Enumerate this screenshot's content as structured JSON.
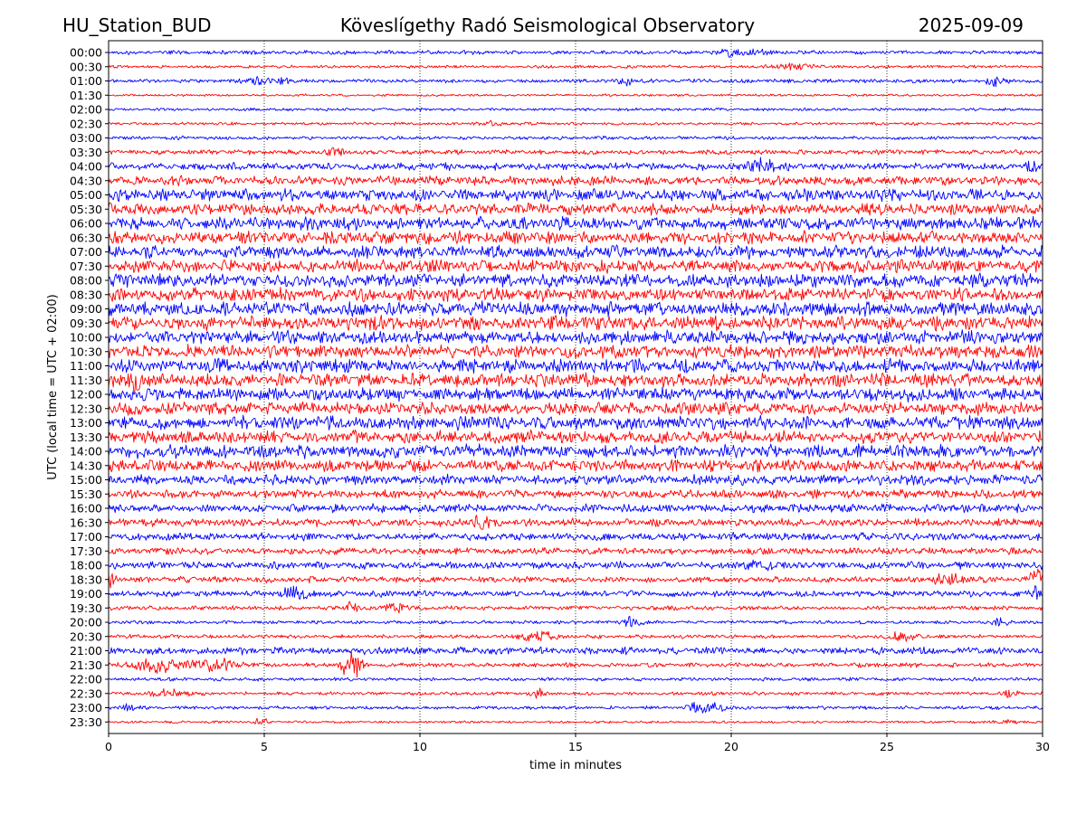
{
  "header": {
    "station": "HU_Station_BUD",
    "title": "Köveslígethy Radó Seismological Observatory",
    "date": "2025-09-09"
  },
  "chart_data": {
    "type": "line",
    "title": "Köveslígethy Radó Seismological Observatory",
    "station": "HU_Station_BUD",
    "date": "2025-09-09",
    "xlabel": "time in minutes",
    "ylabel": "UTC (local time = UTC + 02:00)",
    "xlim": [
      0,
      30
    ],
    "xticks": [
      0,
      5,
      10,
      15,
      20,
      25,
      30
    ],
    "x_gridlines": "dotted vertical at every 5 minutes",
    "colors": {
      "even_trace": "#0000ff",
      "odd_trace": "#ff0000",
      "frame": "#000000",
      "background": "#ffffff"
    },
    "rows": [
      {
        "label": "00:00",
        "amp": 0.16,
        "events": [
          {
            "t": 20.2,
            "a": 0.3,
            "w": 0.8
          }
        ]
      },
      {
        "label": "00:30",
        "amp": 0.12,
        "events": [
          {
            "t": 22.0,
            "a": 0.28,
            "w": 0.7
          }
        ]
      },
      {
        "label": "01:00",
        "amp": 0.16,
        "events": [
          {
            "t": 5.0,
            "a": 0.4,
            "w": 0.7
          },
          {
            "t": 16.7,
            "a": 0.45,
            "w": 0.25
          },
          {
            "t": 28.5,
            "a": 0.45,
            "w": 0.3
          }
        ]
      },
      {
        "label": "01:30",
        "amp": 0.1,
        "events": []
      },
      {
        "label": "02:00",
        "amp": 0.12,
        "events": []
      },
      {
        "label": "02:30",
        "amp": 0.12,
        "events": [
          {
            "t": 12.2,
            "a": 0.3,
            "w": 0.4
          }
        ]
      },
      {
        "label": "03:00",
        "amp": 0.14,
        "events": []
      },
      {
        "label": "03:30",
        "amp": 0.2,
        "events": [
          {
            "t": 7.3,
            "a": 0.45,
            "w": 0.3
          }
        ]
      },
      {
        "label": "04:00",
        "amp": 0.3,
        "events": [
          {
            "t": 21.0,
            "a": 0.65,
            "w": 0.5
          },
          {
            "t": 29.7,
            "a": 0.45,
            "w": 0.2
          }
        ]
      },
      {
        "label": "04:30",
        "amp": 0.38,
        "events": []
      },
      {
        "label": "05:00",
        "amp": 0.5,
        "events": []
      },
      {
        "label": "05:30",
        "amp": 0.48,
        "events": []
      },
      {
        "label": "06:00",
        "amp": 0.52,
        "events": []
      },
      {
        "label": "06:30",
        "amp": 0.52,
        "events": []
      },
      {
        "label": "07:00",
        "amp": 0.52,
        "events": []
      },
      {
        "label": "07:30",
        "amp": 0.52,
        "events": []
      },
      {
        "label": "08:00",
        "amp": 0.55,
        "events": []
      },
      {
        "label": "08:30",
        "amp": 0.55,
        "events": []
      },
      {
        "label": "09:00",
        "amp": 0.58,
        "events": []
      },
      {
        "label": "09:30",
        "amp": 0.58,
        "events": []
      },
      {
        "label": "10:00",
        "amp": 0.55,
        "events": []
      },
      {
        "label": "10:30",
        "amp": 0.55,
        "events": []
      },
      {
        "label": "11:00",
        "amp": 0.55,
        "events": []
      },
      {
        "label": "11:30",
        "amp": 0.55,
        "events": [
          {
            "t": 0.9,
            "a": 0.9,
            "w": 0.2
          }
        ]
      },
      {
        "label": "12:00",
        "amp": 0.55,
        "events": []
      },
      {
        "label": "12:30",
        "amp": 0.52,
        "events": []
      },
      {
        "label": "13:00",
        "amp": 0.55,
        "events": []
      },
      {
        "label": "13:30",
        "amp": 0.52,
        "events": []
      },
      {
        "label": "14:00",
        "amp": 0.55,
        "events": []
      },
      {
        "label": "14:30",
        "amp": 0.5,
        "events": []
      },
      {
        "label": "15:00",
        "amp": 0.42,
        "events": []
      },
      {
        "label": "15:30",
        "amp": 0.35,
        "events": []
      },
      {
        "label": "16:00",
        "amp": 0.35,
        "events": []
      },
      {
        "label": "16:30",
        "amp": 0.32,
        "events": [
          {
            "t": 11.9,
            "a": 0.55,
            "w": 0.3
          }
        ]
      },
      {
        "label": "17:00",
        "amp": 0.32,
        "events": []
      },
      {
        "label": "17:30",
        "amp": 0.28,
        "events": []
      },
      {
        "label": "18:00",
        "amp": 0.3,
        "events": [
          {
            "t": 21.0,
            "a": 0.55,
            "w": 0.3
          }
        ]
      },
      {
        "label": "18:30",
        "amp": 0.25,
        "events": [
          {
            "t": 0.1,
            "a": 0.7,
            "w": 0.15
          },
          {
            "t": 27.0,
            "a": 0.5,
            "w": 0.5
          },
          {
            "t": 29.8,
            "a": 1.0,
            "w": 0.2
          }
        ]
      },
      {
        "label": "19:00",
        "amp": 0.25,
        "events": [
          {
            "t": 6.0,
            "a": 0.45,
            "w": 0.5
          },
          {
            "t": 29.8,
            "a": 0.55,
            "w": 0.2
          }
        ]
      },
      {
        "label": "19:30",
        "amp": 0.18,
        "events": [
          {
            "t": 7.8,
            "a": 0.55,
            "w": 0.2
          },
          {
            "t": 9.2,
            "a": 0.45,
            "w": 0.3
          }
        ]
      },
      {
        "label": "20:00",
        "amp": 0.14,
        "events": [
          {
            "t": 16.8,
            "a": 0.45,
            "w": 0.3
          },
          {
            "t": 28.6,
            "a": 0.45,
            "w": 0.3
          }
        ]
      },
      {
        "label": "20:30",
        "amp": 0.16,
        "events": [
          {
            "t": 13.8,
            "a": 0.45,
            "w": 0.6
          },
          {
            "t": 25.5,
            "a": 0.4,
            "w": 0.5
          }
        ]
      },
      {
        "label": "21:00",
        "amp": 0.3,
        "events": []
      },
      {
        "label": "21:30",
        "amp": 0.18,
        "events": [
          {
            "t": 1.5,
            "a": 0.65,
            "w": 0.8
          },
          {
            "t": 3.5,
            "a": 0.55,
            "w": 0.8
          },
          {
            "t": 7.8,
            "a": 1.6,
            "w": 0.3
          }
        ]
      },
      {
        "label": "22:00",
        "amp": 0.14,
        "events": []
      },
      {
        "label": "22:30",
        "amp": 0.14,
        "events": [
          {
            "t": 2.0,
            "a": 0.35,
            "w": 0.6
          },
          {
            "t": 13.8,
            "a": 0.45,
            "w": 0.3
          },
          {
            "t": 29.0,
            "a": 0.45,
            "w": 0.2
          }
        ]
      },
      {
        "label": "23:00",
        "amp": 0.14,
        "events": [
          {
            "t": 0.6,
            "a": 0.45,
            "w": 0.2
          },
          {
            "t": 19.2,
            "a": 0.55,
            "w": 0.6
          }
        ]
      },
      {
        "label": "23:30",
        "amp": 0.1,
        "events": [
          {
            "t": 4.9,
            "a": 0.35,
            "w": 0.2
          },
          {
            "t": 28.8,
            "a": 0.3,
            "w": 0.3
          }
        ]
      }
    ]
  }
}
